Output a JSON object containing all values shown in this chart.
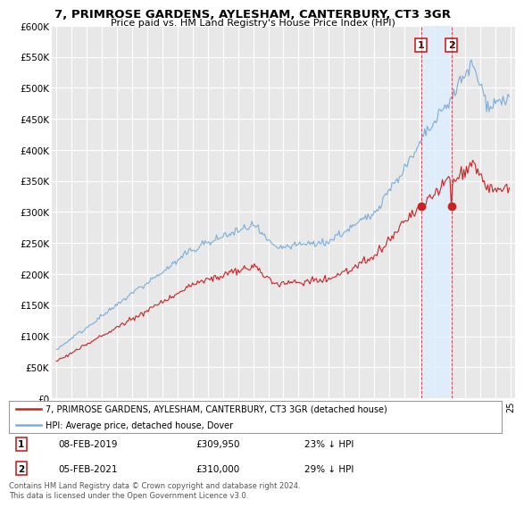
{
  "title": "7, PRIMROSE GARDENS, AYLESHAM, CANTERBURY, CT3 3GR",
  "subtitle": "Price paid vs. HM Land Registry's House Price Index (HPI)",
  "ylim": [
    0,
    600000
  ],
  "yticks": [
    0,
    50000,
    100000,
    150000,
    200000,
    250000,
    300000,
    350000,
    400000,
    450000,
    500000,
    550000,
    600000
  ],
  "ytick_labels": [
    "£0",
    "£50K",
    "£100K",
    "£150K",
    "£200K",
    "£250K",
    "£300K",
    "£350K",
    "£400K",
    "£450K",
    "£500K",
    "£550K",
    "£600K"
  ],
  "hpi_color": "#7aaddb",
  "price_color": "#cc2222",
  "sale1_date": "08-FEB-2019",
  "sale1_price": 309950,
  "sale1_label": "1",
  "sale1_hpi_pct": "23% ↓ HPI",
  "sale2_date": "05-FEB-2021",
  "sale2_price": 310000,
  "sale2_label": "2",
  "sale2_hpi_pct": "29% ↓ HPI",
  "legend_line1": "7, PRIMROSE GARDENS, AYLESHAM, CANTERBURY, CT3 3GR (detached house)",
  "legend_line2": "HPI: Average price, detached house, Dover",
  "footer": "Contains HM Land Registry data © Crown copyright and database right 2024.\nThis data is licensed under the Open Government Licence v3.0.",
  "background_color": "#ffffff",
  "plot_bg_color": "#e8e8e8",
  "grid_color": "#ffffff",
  "shade_color": "#ddeeff",
  "sale1_x": 2019.1,
  "sale2_x": 2021.1,
  "xlim_start": 1994.7,
  "xlim_end": 2025.3
}
